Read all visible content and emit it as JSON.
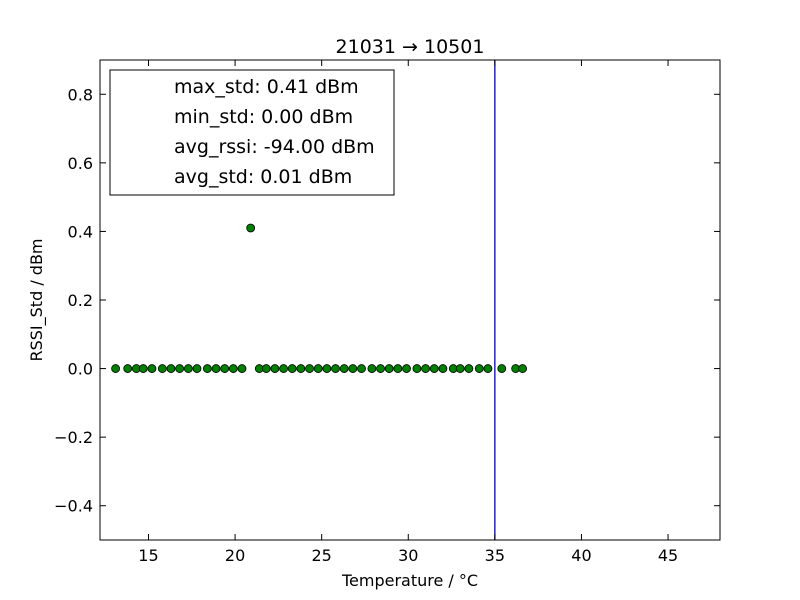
{
  "chart_data": {
    "type": "scatter",
    "title": "21031 → 10501",
    "xlabel": "Temperature / °C",
    "ylabel": "RSSI_Std / dBm",
    "xlim": [
      12.2,
      48.0
    ],
    "ylim": [
      -0.5,
      0.9
    ],
    "xticks": [
      15,
      20,
      25,
      30,
      35,
      40,
      45
    ],
    "yticks": [
      -0.4,
      -0.2,
      0.0,
      0.2,
      0.4,
      0.6,
      0.8
    ],
    "xtick_labels": [
      "15",
      "20",
      "25",
      "30",
      "35",
      "40",
      "45"
    ],
    "ytick_labels": [
      "−0.4",
      "−0.2",
      "0.0",
      "0.2",
      "0.4",
      "0.6",
      "0.8"
    ],
    "grid": false,
    "legend_position": "top-left",
    "legend_entries": [
      "max_std: 0.41 dBm",
      "min_std: 0.00 dBm",
      "avg_rssi: -94.00 dBm",
      "avg_std: 0.01 dBm"
    ],
    "vline": {
      "x": 35.0,
      "color": "#0000cc"
    },
    "point_color": "#008000",
    "series": [
      {
        "x": [
          13.1,
          13.8,
          14.3,
          14.7,
          15.2,
          15.8,
          16.3,
          16.8,
          17.3,
          17.8,
          18.4,
          18.9,
          19.4,
          19.9,
          20.4,
          20.9,
          21.4,
          21.8,
          22.3,
          22.8,
          23.3,
          23.8,
          24.3,
          24.8,
          25.3,
          25.8,
          26.3,
          26.8,
          27.3,
          27.9,
          28.4,
          28.9,
          29.4,
          29.9,
          30.5,
          31.0,
          31.5,
          32.0,
          32.6,
          33.0,
          33.5,
          34.1,
          34.6,
          35.4,
          36.2,
          36.6
        ],
        "y": [
          0.0,
          0.0,
          0.0,
          0.0,
          0.0,
          0.0,
          0.0,
          0.0,
          0.0,
          0.0,
          0.0,
          0.0,
          0.0,
          0.0,
          0.0,
          0.41,
          0.0,
          0.0,
          0.0,
          0.0,
          0.0,
          0.0,
          0.0,
          0.0,
          0.0,
          0.0,
          0.0,
          0.0,
          0.0,
          0.0,
          0.0,
          0.0,
          0.0,
          0.0,
          0.0,
          0.0,
          0.0,
          0.0,
          0.0,
          0.0,
          0.0,
          0.0,
          0.0,
          0.0,
          0.0,
          0.0
        ]
      }
    ]
  }
}
